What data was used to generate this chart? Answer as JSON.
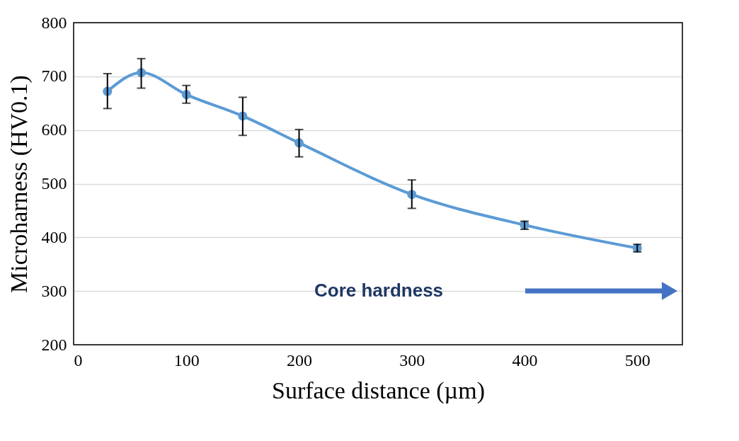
{
  "chart_data": {
    "type": "line",
    "xlabel": "Surface distance (µm)",
    "ylabel": "Microharness (HV0.1)",
    "x": [
      30,
      60,
      100,
      150,
      200,
      300,
      400,
      500
    ],
    "series": [
      {
        "color": "#5b9bd5",
        "values": [
          672,
          707,
          666,
          626,
          576,
          480,
          423,
          380
        ],
        "errors": [
          [
            640,
            705
          ],
          [
            678,
            733
          ],
          [
            650,
            683
          ],
          [
            590,
            661
          ],
          [
            550,
            601
          ],
          [
            454,
            507
          ],
          [
            415,
            430
          ],
          [
            373,
            387
          ]
        ]
      }
    ],
    "xlim": [
      0,
      540
    ],
    "xticks": [
      0,
      100,
      200,
      300,
      400,
      500
    ],
    "ylim": [
      200,
      800
    ],
    "yticks": [
      200,
      300,
      400,
      500,
      600,
      700,
      800
    ],
    "grid": "y",
    "marker": "circle",
    "line_style": "solid",
    "legend": false,
    "annotations": [
      "Core hardness"
    ]
  }
}
